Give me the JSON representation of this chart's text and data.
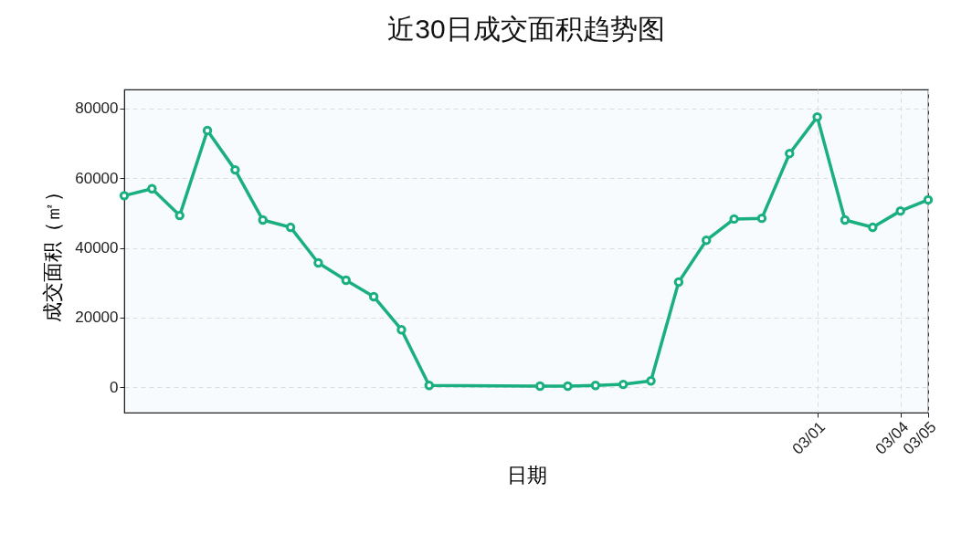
{
  "chart_data": {
    "type": "line",
    "title": "近30日成交面积趋势图",
    "xlabel": "日期",
    "ylabel": "成交面积（㎡）",
    "x": [
      "--02-04",
      "--02-05",
      "--02-06",
      "--02-07",
      "--02-08",
      "--02-09",
      "--02-10",
      "--02-11",
      "--02-12",
      "--02-13",
      "--02-14",
      "--02-15",
      "--02-19",
      "--02-20",
      "--02-21",
      "--02-22",
      "--02-23",
      "--02-24",
      "--02-25",
      "--02-26",
      "--02-27",
      "--02-28",
      "--03-01",
      "--03-02",
      "--03-03",
      "--03-04",
      "--03-05"
    ],
    "series": [
      {
        "color": "#1aaf7f",
        "values": [
          55000,
          57000,
          49300,
          73700,
          62400,
          48000,
          45900,
          35700,
          30700,
          26000,
          16500,
          500,
          300,
          300,
          500,
          800,
          1800,
          30200,
          42200,
          48300,
          48500,
          67100,
          77600,
          48000,
          45900,
          50600,
          53800
        ]
      }
    ],
    "xlim": [
      "--02-04",
      "--03-05"
    ],
    "xticks": [
      {
        "value": "--03-01",
        "label": "03/01"
      },
      {
        "value": "--03-04",
        "label": "03/04"
      },
      {
        "value": "--03-05",
        "label": "03/05"
      }
    ],
    "ylim": [
      -7300,
      85500
    ],
    "yticks": [
      0,
      20000,
      40000,
      60000,
      80000
    ],
    "grid": true,
    "marker": "circle",
    "line_style": "solid"
  }
}
